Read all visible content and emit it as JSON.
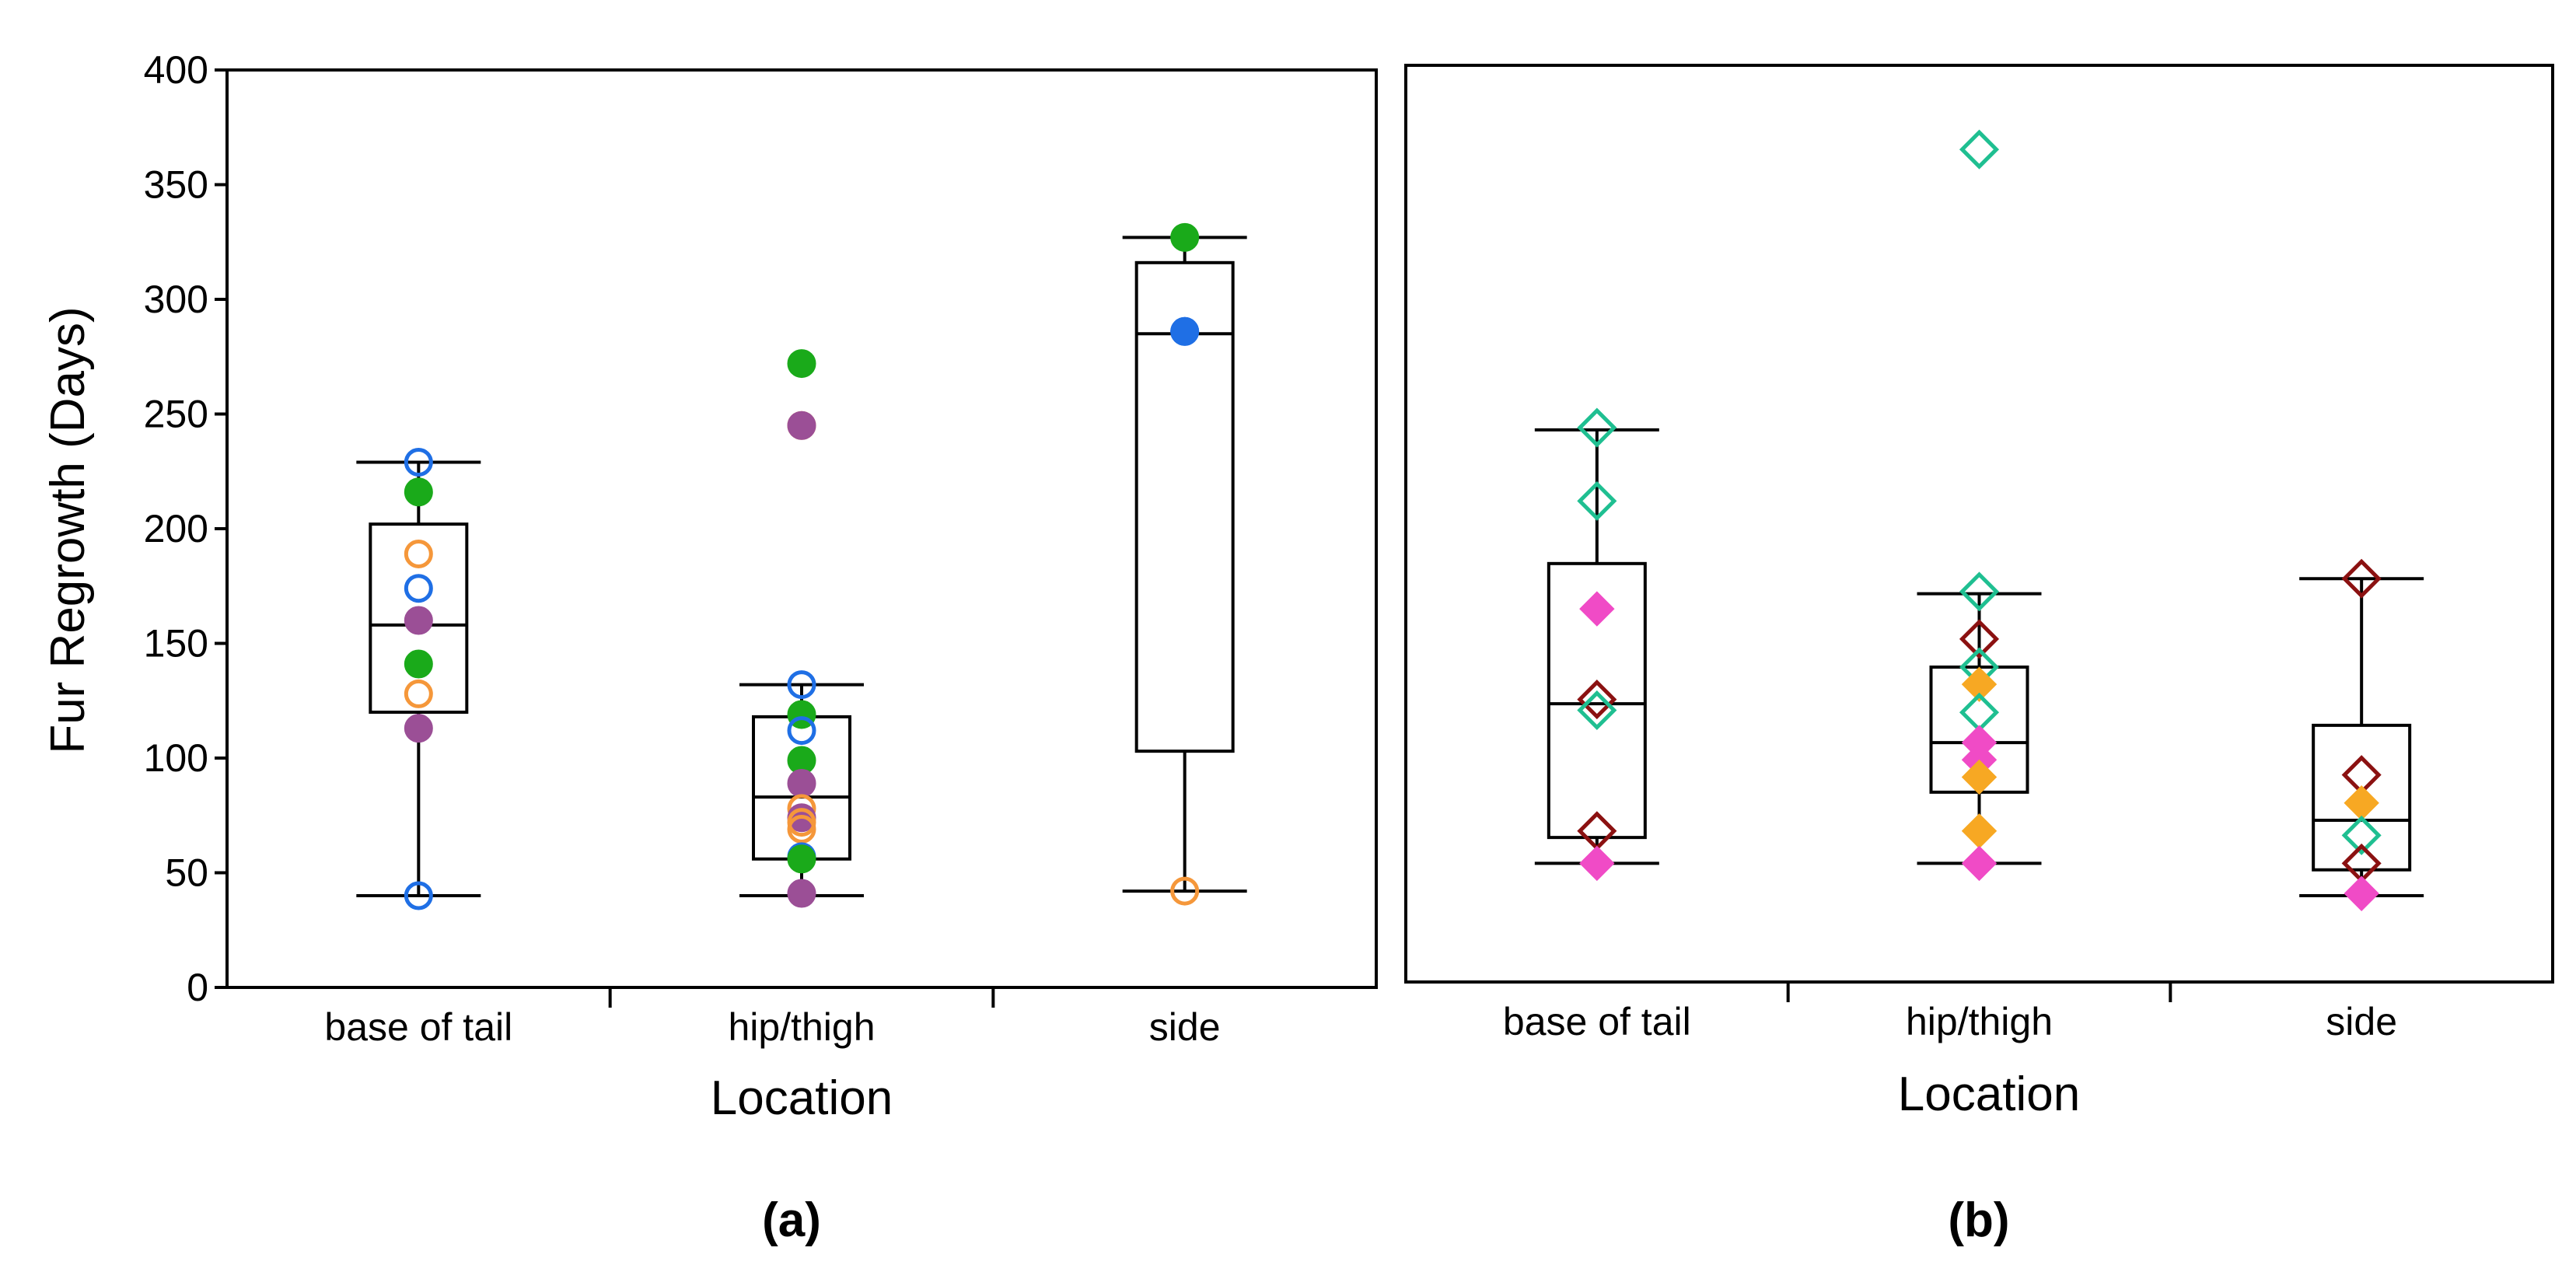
{
  "colors": {
    "blue": "#1f6fe5",
    "orange": "#f5973a",
    "green": "#1aaa1a",
    "purple": "#9b4f96",
    "teal": "#1fbf91",
    "darkred": "#8b1111",
    "pink": "#f04bc6",
    "gold": "#f7a823"
  },
  "chart_data": [
    {
      "type": "box",
      "panel_label": "(a)",
      "xlabel": "Location",
      "ylabel": "Fur Regrowth (Days)",
      "ylim": [
        0,
        400
      ],
      "yticks": [
        "0",
        "50",
        "100",
        "150",
        "200",
        "250",
        "300",
        "350",
        "400"
      ],
      "categories": [
        "base of tail",
        "hip/thigh",
        "side"
      ],
      "boxes": [
        {
          "category": "base of tail",
          "min": 40,
          "q1": 120,
          "median": 158,
          "q3": 202,
          "max": 229
        },
        {
          "category": "hip/thigh",
          "min": 40,
          "q1": 56,
          "median": 83,
          "q3": 118,
          "max": 132
        },
        {
          "category": "side",
          "min": 42,
          "q1": 103,
          "median": 285,
          "q3": 316,
          "max": 327
        }
      ],
      "points": [
        {
          "category": "base of tail",
          "y": 229,
          "color": "blue",
          "marker": "circle-open"
        },
        {
          "category": "base of tail",
          "y": 216,
          "color": "green",
          "marker": "circle"
        },
        {
          "category": "base of tail",
          "y": 189,
          "color": "orange",
          "marker": "circle-open"
        },
        {
          "category": "base of tail",
          "y": 174,
          "color": "blue",
          "marker": "circle-open"
        },
        {
          "category": "base of tail",
          "y": 160,
          "color": "purple",
          "marker": "circle"
        },
        {
          "category": "base of tail",
          "y": 141,
          "color": "green",
          "marker": "circle"
        },
        {
          "category": "base of tail",
          "y": 128,
          "color": "orange",
          "marker": "circle-open"
        },
        {
          "category": "base of tail",
          "y": 113,
          "color": "purple",
          "marker": "circle"
        },
        {
          "category": "base of tail",
          "y": 40,
          "color": "blue",
          "marker": "circle-open"
        },
        {
          "category": "hip/thigh",
          "y": 272,
          "color": "green",
          "marker": "circle"
        },
        {
          "category": "hip/thigh",
          "y": 245,
          "color": "orange",
          "marker": "circle-open"
        },
        {
          "category": "hip/thigh",
          "y": 245,
          "color": "purple",
          "marker": "circle"
        },
        {
          "category": "hip/thigh",
          "y": 132,
          "color": "blue",
          "marker": "circle-open"
        },
        {
          "category": "hip/thigh",
          "y": 119,
          "color": "green",
          "marker": "circle"
        },
        {
          "category": "hip/thigh",
          "y": 112,
          "color": "blue",
          "marker": "circle-open"
        },
        {
          "category": "hip/thigh",
          "y": 99,
          "color": "green",
          "marker": "circle"
        },
        {
          "category": "hip/thigh",
          "y": 89,
          "color": "purple",
          "marker": "circle"
        },
        {
          "category": "hip/thigh",
          "y": 78,
          "color": "orange",
          "marker": "circle-open"
        },
        {
          "category": "hip/thigh",
          "y": 74,
          "color": "purple",
          "marker": "circle"
        },
        {
          "category": "hip/thigh",
          "y": 72,
          "color": "orange",
          "marker": "circle-open"
        },
        {
          "category": "hip/thigh",
          "y": 69,
          "color": "orange",
          "marker": "circle-open"
        },
        {
          "category": "hip/thigh",
          "y": 57,
          "color": "blue",
          "marker": "circle"
        },
        {
          "category": "hip/thigh",
          "y": 56,
          "color": "green",
          "marker": "circle"
        },
        {
          "category": "hip/thigh",
          "y": 41,
          "color": "purple",
          "marker": "circle"
        },
        {
          "category": "side",
          "y": 327,
          "color": "green",
          "marker": "circle"
        },
        {
          "category": "side",
          "y": 286,
          "color": "blue",
          "marker": "circle-open"
        },
        {
          "category": "side",
          "y": 286,
          "color": "blue",
          "marker": "circle"
        },
        {
          "category": "side",
          "y": 42,
          "color": "orange",
          "marker": "circle-open"
        }
      ]
    },
    {
      "type": "box",
      "panel_label": "(b)",
      "xlabel": "Location",
      "ylabel": "",
      "ylim": [
        0,
        400
      ],
      "categories": [
        "base of tail",
        "hip/thigh",
        "side"
      ],
      "boxes": [
        {
          "category": "base of tail",
          "min": 30,
          "q1": 42,
          "median": 104,
          "q3": 169,
          "max": 231
        },
        {
          "category": "hip/thigh",
          "min": 30,
          "q1": 63,
          "median": 86,
          "q3": 121,
          "max": 155
        },
        {
          "category": "side",
          "min": 15,
          "q1": 27,
          "median": 50,
          "q3": 94,
          "max": 162
        }
      ],
      "points": [
        {
          "category": "base of tail",
          "y": 232,
          "color": "teal",
          "marker": "diamond-open"
        },
        {
          "category": "base of tail",
          "y": 198,
          "color": "teal",
          "marker": "diamond-open"
        },
        {
          "category": "base of tail",
          "y": 148,
          "color": "pink",
          "marker": "diamond"
        },
        {
          "category": "base of tail",
          "y": 106,
          "color": "darkred",
          "marker": "diamond-open"
        },
        {
          "category": "base of tail",
          "y": 101,
          "color": "teal",
          "marker": "diamond-open"
        },
        {
          "category": "base of tail",
          "y": 45,
          "color": "darkred",
          "marker": "diamond-open"
        },
        {
          "category": "base of tail",
          "y": 30,
          "color": "pink",
          "marker": "diamond"
        },
        {
          "category": "hip/thigh",
          "y": 361,
          "color": "teal",
          "marker": "diamond-open"
        },
        {
          "category": "hip/thigh",
          "y": 156,
          "color": "teal",
          "marker": "diamond-open"
        },
        {
          "category": "hip/thigh",
          "y": 134,
          "color": "darkred",
          "marker": "diamond-open"
        },
        {
          "category": "hip/thigh",
          "y": 121,
          "color": "teal",
          "marker": "diamond-open"
        },
        {
          "category": "hip/thigh",
          "y": 113,
          "color": "gold",
          "marker": "diamond"
        },
        {
          "category": "hip/thigh",
          "y": 100,
          "color": "teal",
          "marker": "diamond-open"
        },
        {
          "category": "hip/thigh",
          "y": 86,
          "color": "pink",
          "marker": "diamond"
        },
        {
          "category": "hip/thigh",
          "y": 78,
          "color": "pink",
          "marker": "diamond"
        },
        {
          "category": "hip/thigh",
          "y": 70,
          "color": "gold",
          "marker": "diamond"
        },
        {
          "category": "hip/thigh",
          "y": 45,
          "color": "gold",
          "marker": "diamond"
        },
        {
          "category": "hip/thigh",
          "y": 30,
          "color": "pink",
          "marker": "diamond"
        },
        {
          "category": "side",
          "y": 162,
          "color": "darkred",
          "marker": "diamond-open"
        },
        {
          "category": "side",
          "y": 71,
          "color": "darkred",
          "marker": "diamond-open"
        },
        {
          "category": "side",
          "y": 58,
          "color": "gold",
          "marker": "diamond"
        },
        {
          "category": "side",
          "y": 43,
          "color": "teal",
          "marker": "diamond-open"
        },
        {
          "category": "side",
          "y": 30,
          "color": "darkred",
          "marker": "diamond-open"
        },
        {
          "category": "side",
          "y": 16,
          "color": "pink",
          "marker": "diamond"
        }
      ]
    }
  ]
}
